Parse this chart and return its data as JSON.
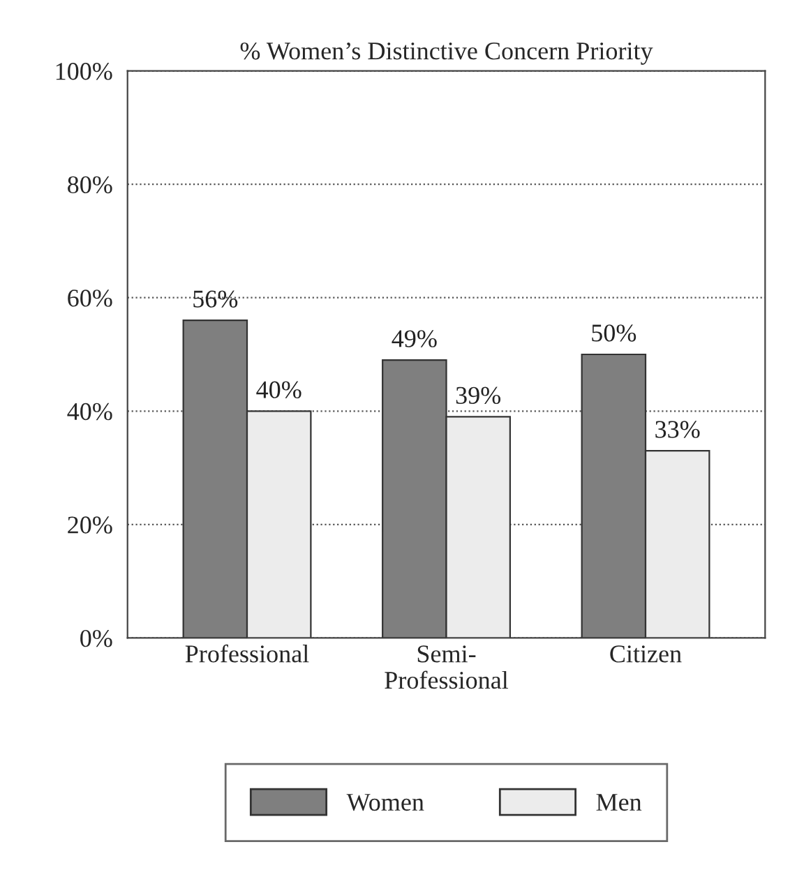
{
  "chart_data": {
    "type": "bar",
    "title": "% Women’s Distinctive Concern Priority",
    "categories": [
      "Professional",
      "Semi-\nProfessional",
      "Citizen"
    ],
    "series": [
      {
        "name": "Women",
        "color": "#7f7f7f",
        "values": [
          56,
          49,
          50
        ],
        "value_labels": [
          "56%",
          "49%",
          "50%"
        ]
      },
      {
        "name": "Men",
        "color": "#ececec",
        "values": [
          40,
          39,
          33
        ],
        "value_labels": [
          "40%",
          "39%",
          "33%"
        ]
      }
    ],
    "ylim": [
      0,
      100
    ],
    "yticks": [
      {
        "value": 0,
        "label": "0%"
      },
      {
        "value": 20,
        "label": "20%"
      },
      {
        "value": 40,
        "label": "40%"
      },
      {
        "value": 60,
        "label": "60%"
      },
      {
        "value": 80,
        "label": "80%"
      },
      {
        "value": 100,
        "label": "100%"
      }
    ],
    "grid": "y",
    "legend": "bottom"
  }
}
